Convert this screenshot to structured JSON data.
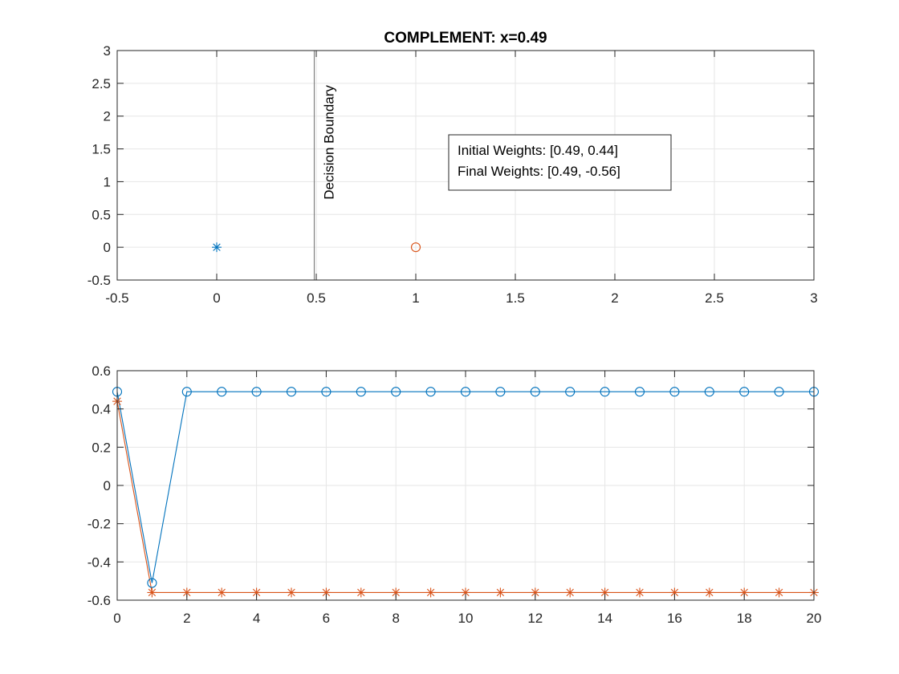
{
  "chart_data": [
    {
      "type": "scatter",
      "title": "COMPLEMENT: x=0.49",
      "xlim": [
        -0.5,
        3
      ],
      "ylim": [
        -0.5,
        3
      ],
      "xticks": [
        "-0.5",
        "0",
        "0.5",
        "1",
        "1.5",
        "2",
        "2.5",
        "3"
      ],
      "xtick_values": [
        -0.5,
        0,
        0.5,
        1,
        1.5,
        2,
        2.5,
        3
      ],
      "yticks": [
        "-0.5",
        "0",
        "0.5",
        "1",
        "1.5",
        "2",
        "2.5",
        "3"
      ],
      "ytick_values": [
        -0.5,
        0,
        0.5,
        1,
        1.5,
        2,
        2.5,
        3
      ],
      "grid": true,
      "points": [
        {
          "x": 0,
          "y": 0,
          "marker": "asterisk",
          "color": "#0072bd"
        },
        {
          "x": 1,
          "y": 0,
          "marker": "circle",
          "color": "#d95319"
        }
      ],
      "decision_boundary": {
        "x": 0.49,
        "label": "Decision Boundary",
        "color": "#808080"
      },
      "annotation": {
        "line1": "Initial Weights: [0.49, 0.44]",
        "line2": "Final Weights: [0.49, -0.56]"
      }
    },
    {
      "type": "line",
      "xlim": [
        0,
        20
      ],
      "ylim": [
        -0.6,
        0.6
      ],
      "xticks": [
        "0",
        "2",
        "4",
        "6",
        "8",
        "10",
        "12",
        "14",
        "16",
        "18",
        "20"
      ],
      "xtick_values": [
        0,
        2,
        4,
        6,
        8,
        10,
        12,
        14,
        16,
        18,
        20
      ],
      "yticks": [
        "-0.6",
        "-0.4",
        "-0.2",
        "0",
        "0.2",
        "0.4",
        "0.6"
      ],
      "ytick_values": [
        -0.6,
        -0.4,
        -0.2,
        0,
        0.2,
        0.4,
        0.6
      ],
      "grid": true,
      "x": [
        0,
        1,
        2,
        3,
        4,
        5,
        6,
        7,
        8,
        9,
        10,
        11,
        12,
        13,
        14,
        15,
        16,
        17,
        18,
        19,
        20
      ],
      "series": [
        {
          "marker": "circle",
          "color": "#0072bd",
          "values": [
            0.49,
            -0.51,
            0.49,
            0.49,
            0.49,
            0.49,
            0.49,
            0.49,
            0.49,
            0.49,
            0.49,
            0.49,
            0.49,
            0.49,
            0.49,
            0.49,
            0.49,
            0.49,
            0.49,
            0.49,
            0.49
          ]
        },
        {
          "marker": "asterisk",
          "color": "#d95319",
          "values": [
            0.44,
            -0.56,
            -0.56,
            -0.56,
            -0.56,
            -0.56,
            -0.56,
            -0.56,
            -0.56,
            -0.56,
            -0.56,
            -0.56,
            -0.56,
            -0.56,
            -0.56,
            -0.56,
            -0.56,
            -0.56,
            -0.56,
            -0.56,
            -0.56
          ]
        }
      ]
    }
  ]
}
